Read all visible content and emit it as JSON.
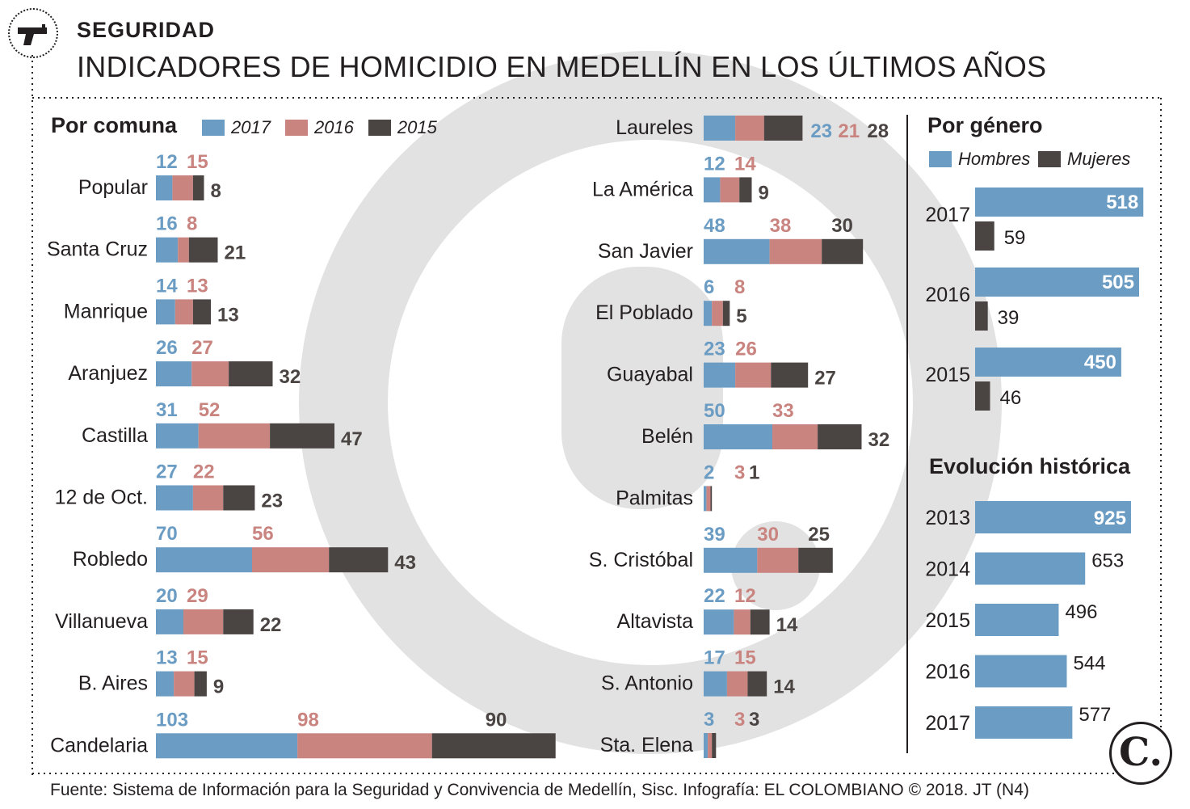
{
  "header": {
    "kicker": "SEGURIDAD",
    "title": "INDICADORES DE HOMICIDIO EN MEDELLÍN EN LOS ÚLTIMOS AÑOS"
  },
  "legend": {
    "title": "Por comuna",
    "y2017": "2017",
    "y2016": "2016",
    "y2015": "2015"
  },
  "gender_section": {
    "title": "Por género",
    "men": "Hombres",
    "women": "Mujeres"
  },
  "history_section": {
    "title": "Evolución histórica"
  },
  "colors": {
    "c2017": "#6b9cc3",
    "c2016": "#c98480",
    "c2015": "#4a4543",
    "text2017": "#6b9cc3",
    "text2016": "#c98480",
    "text2015": "#4a4543"
  },
  "source": "Fuente: Sistema de Información para la Seguridad y Convivencia de Medellín, Sisc. Infografía: EL COLOMBIANO © 2018. JT (N4)",
  "logo": "C.",
  "chart_data": [
    {
      "type": "bar",
      "title": "Por comuna",
      "stacked": true,
      "categories": [
        "Popular",
        "Santa Cruz",
        "Manrique",
        "Aranjuez",
        "Castilla",
        "12 de Oct.",
        "Robledo",
        "Villanueva",
        "B. Aires",
        "Candelaria"
      ],
      "series": [
        {
          "name": "2017",
          "values": [
            12,
            16,
            14,
            26,
            31,
            27,
            70,
            20,
            13,
            103
          ]
        },
        {
          "name": "2016",
          "values": [
            15,
            8,
            13,
            27,
            52,
            22,
            56,
            29,
            15,
            98
          ]
        },
        {
          "name": "2015",
          "values": [
            8,
            21,
            13,
            32,
            47,
            23,
            43,
            22,
            9,
            90
          ]
        }
      ]
    },
    {
      "type": "bar",
      "title": "Por comuna",
      "stacked": true,
      "categories": [
        "Laureles",
        "La América",
        "San Javier",
        "El Poblado",
        "Guayabal",
        "Belén",
        "Palmitas",
        "S. Cristóbal",
        "Altavista",
        "S. Antonio",
        "Sta. Elena"
      ],
      "series": [
        {
          "name": "2017",
          "values": [
            23,
            12,
            48,
            6,
            23,
            50,
            2,
            39,
            22,
            17,
            3
          ]
        },
        {
          "name": "2016",
          "values": [
            21,
            14,
            38,
            8,
            26,
            33,
            3,
            30,
            12,
            15,
            3
          ]
        },
        {
          "name": "2015",
          "values": [
            28,
            9,
            30,
            5,
            27,
            32,
            1,
            25,
            14,
            14,
            3
          ]
        }
      ]
    },
    {
      "type": "bar",
      "title": "Por género",
      "categories": [
        "2017",
        "2016",
        "2015"
      ],
      "series": [
        {
          "name": "Hombres",
          "values": [
            518,
            505,
            450
          ]
        },
        {
          "name": "Mujeres",
          "values": [
            59,
            39,
            46
          ]
        }
      ]
    },
    {
      "type": "bar",
      "title": "Evolución histórica",
      "categories": [
        "2013",
        "2014",
        "2015",
        "2016",
        "2017"
      ],
      "values": [
        925,
        653,
        496,
        544,
        577
      ]
    }
  ]
}
